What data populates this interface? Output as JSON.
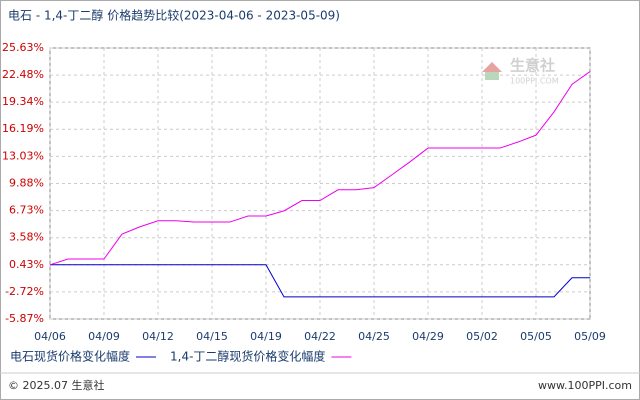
{
  "chart_data": {
    "type": "line",
    "title": "电石 - 1,4-丁二醇 价格趋势比较(2023-04-06 - 2023-05-09)",
    "watermark": [
      "生意社",
      "100PPI.COM"
    ],
    "footer_left": "© 2025.07 生意社",
    "footer_right": "www.100PPI.com",
    "categories": [
      "04/06",
      null,
      null,
      "04/09",
      null,
      null,
      "04/12",
      null,
      null,
      "04/15",
      null,
      null,
      "04/19",
      null,
      null,
      "04/22",
      null,
      null,
      "04/25",
      null,
      null,
      "04/29",
      null,
      null,
      "05/02",
      null,
      null,
      "05/05",
      null,
      null,
      "05/09"
    ],
    "series": [
      {
        "name": "电石现货价格变化幅度",
        "color": "#0000cc",
        "values": [
          0.43,
          0.43,
          0.43,
          0.43,
          0.43,
          0.43,
          0.43,
          0.43,
          0.43,
          0.43,
          0.43,
          0.43,
          0.43,
          -3.3,
          -3.3,
          -3.3,
          -3.3,
          -3.3,
          -3.3,
          -3.3,
          -3.3,
          -3.3,
          -3.3,
          -3.3,
          -3.3,
          -3.3,
          -3.3,
          -3.3,
          -3.3,
          -1.08,
          -1.08
        ]
      },
      {
        "name": "1,4-丁二醇现货价格变化幅度",
        "color": "#ee00ee",
        "values": [
          0.43,
          1.1,
          1.1,
          1.1,
          4.0,
          4.85,
          5.55,
          5.55,
          5.4,
          5.4,
          5.4,
          6.1,
          6.1,
          6.7,
          7.9,
          7.9,
          9.15,
          9.15,
          9.4,
          10.9,
          12.4,
          14.0,
          14.0,
          14.0,
          14.0,
          14.0,
          14.7,
          15.5,
          18.2,
          21.4,
          22.9
        ]
      }
    ],
    "ylim": [
      -5.87,
      25.63
    ],
    "yticks": [
      {
        "value": -5.87,
        "label": "-5.87%"
      },
      {
        "value": -2.72,
        "label": "-2.72%"
      },
      {
        "value": 0.43,
        "label": "0.43%"
      },
      {
        "value": 3.58,
        "label": "3.58%"
      },
      {
        "value": 6.73,
        "label": "6.73%"
      },
      {
        "value": 9.88,
        "label": "9.88%"
      },
      {
        "value": 13.03,
        "label": "13.03%"
      },
      {
        "value": 16.19,
        "label": "16.19%"
      },
      {
        "value": 19.34,
        "label": "19.34%"
      },
      {
        "value": 22.48,
        "label": "22.48%"
      },
      {
        "value": 25.63,
        "label": "25.63%"
      }
    ],
    "grid": true
  }
}
